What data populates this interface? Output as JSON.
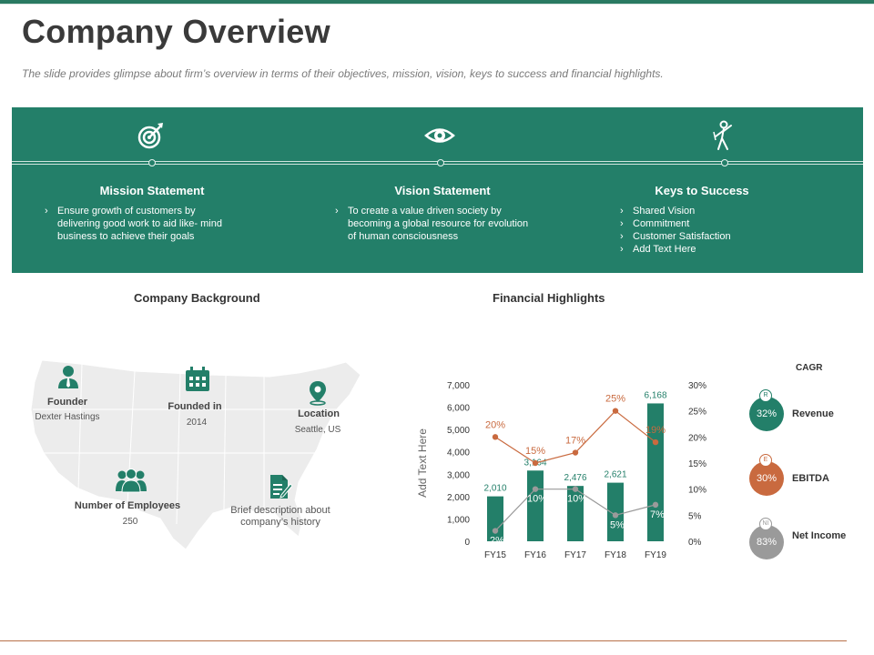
{
  "page": {
    "title": "Company Overview",
    "subtitle": "The slide provides glimpse about firm’s overview in terms of their objectives, mission, vision, keys to success and financial highlights."
  },
  "colors": {
    "green": "#237f69",
    "orange": "#c96a3f",
    "grey": "#9a9a9a"
  },
  "band": {
    "mission": {
      "heading": "Mission Statement",
      "icon": "target-icon",
      "bullets": [
        "Ensure growth of customers by delivering good work to aid like- mind business to achieve their goals"
      ]
    },
    "vision": {
      "heading": "Vision Statement",
      "icon": "eye-icon",
      "bullets": [
        "To create a value driven society by becoming a global resource for evolution of human consciousness"
      ]
    },
    "keys": {
      "heading": "Keys to Success",
      "icon": "success-person-icon",
      "bullets": [
        "Shared Vision",
        "Commitment",
        "Customer Satisfaction",
        "Add Text Here"
      ]
    }
  },
  "background": {
    "heading": "Company Background",
    "founder": {
      "label": "Founder",
      "value": "Dexter Hastings"
    },
    "founded": {
      "label": "Founded  in",
      "value": "2014"
    },
    "location": {
      "label": "Location",
      "value": "Seattle, US"
    },
    "employees": {
      "label": "Number of Employees",
      "value": "250"
    },
    "description": {
      "label": "Brief description about company’s history"
    }
  },
  "financial": {
    "heading": "Financial Highlights",
    "cagr": {
      "heading": "CAGR",
      "items": [
        {
          "badge": "R",
          "value": "32%",
          "label": "Revenue"
        },
        {
          "badge": "E",
          "value": "30%",
          "label": "EBITDA"
        },
        {
          "badge": "NI",
          "value": "83%",
          "label": "Net Income"
        }
      ]
    }
  },
  "chart_data": {
    "type": "bar",
    "categories": [
      "FY15",
      "FY16",
      "FY17",
      "FY18",
      "FY19"
    ],
    "ylabel": "Add Text Here",
    "ylim": [
      0,
      7000
    ],
    "y2lim": [
      0,
      30
    ],
    "y_ticks": [
      "0",
      "1,000",
      "2,000",
      "3,000",
      "4,000",
      "5,000",
      "6,000",
      "7,000"
    ],
    "y2_ticks": [
      "0%",
      "5%",
      "10%",
      "15%",
      "20%",
      "25%",
      "30%"
    ],
    "series": [
      {
        "kind": "bar",
        "values": [
          2010,
          3164,
          2476,
          2621,
          6168
        ],
        "labels": [
          "2,010",
          "3,164",
          "2,476",
          "2,621",
          "6,168"
        ],
        "color": "#237f69"
      },
      {
        "kind": "line",
        "axis": "right",
        "values": [
          20,
          15,
          17,
          25,
          19
        ],
        "labels": [
          "20%",
          "15%",
          "17%",
          "25%",
          "19%"
        ],
        "color": "#c96a3f"
      },
      {
        "kind": "line",
        "axis": "right",
        "values": [
          2,
          10,
          10,
          5,
          7
        ],
        "labels": [
          "2%",
          "10%",
          "10%",
          "5%",
          "7%"
        ],
        "color": "#9a9a9a"
      }
    ],
    "grid": false,
    "legend": "none"
  }
}
